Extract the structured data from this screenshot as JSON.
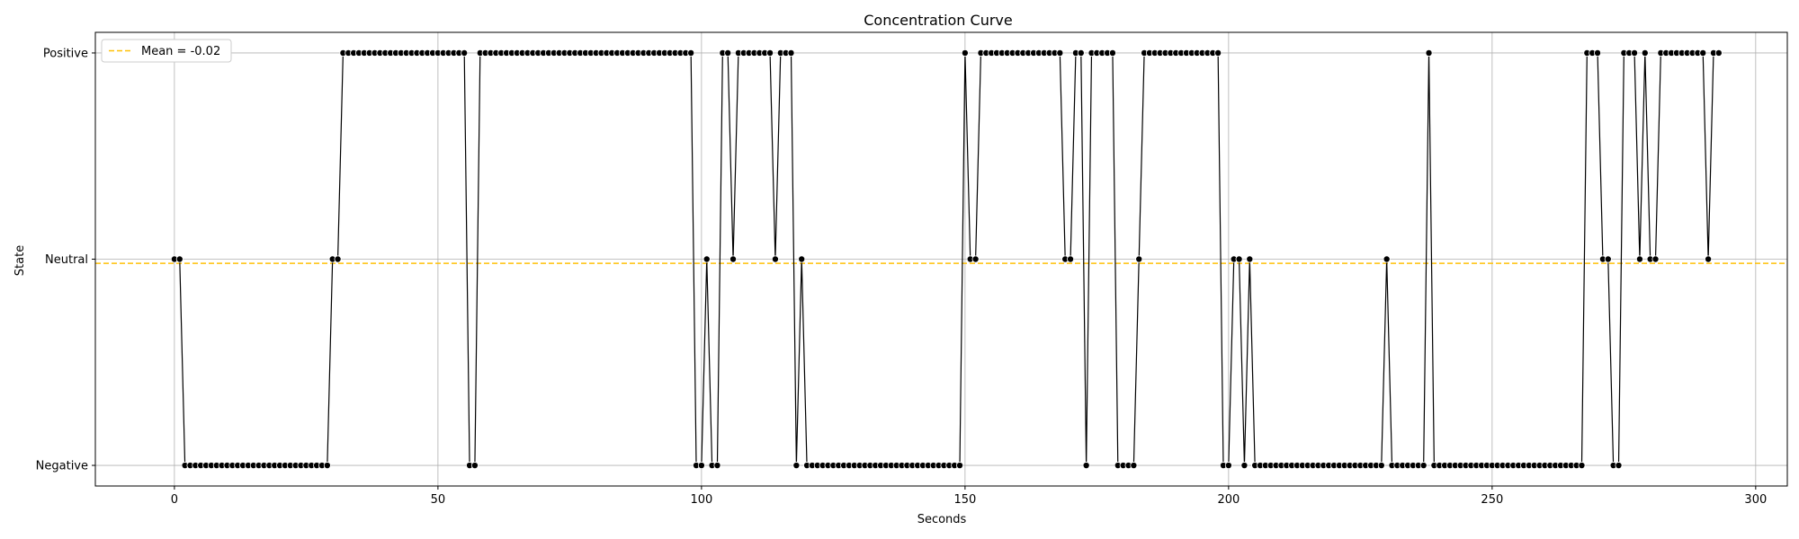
{
  "chart_data": {
    "type": "line",
    "title": "Concentration Curve",
    "xlabel": "Seconds",
    "ylabel": "State",
    "xlim": [
      -15,
      306
    ],
    "ylim": [
      -1.1,
      1.1
    ],
    "x_ticks": [
      0,
      50,
      100,
      150,
      200,
      250,
      300
    ],
    "y_ticks": [
      {
        "value": -1,
        "label": "Negative"
      },
      {
        "value": 0,
        "label": "Neutral"
      },
      {
        "value": 1,
        "label": "Positive"
      }
    ],
    "grid": true,
    "legend_position": "top-left",
    "mean_line": {
      "label": "Mean = -0.02",
      "value": -0.02,
      "color": "#ffc107"
    },
    "series": [
      {
        "color": "#000000",
        "x_start": 0,
        "x_step": 1,
        "values": [
          0,
          0,
          -1,
          -1,
          -1,
          -1,
          -1,
          -1,
          -1,
          -1,
          -1,
          -1,
          -1,
          -1,
          -1,
          -1,
          -1,
          -1,
          -1,
          -1,
          -1,
          -1,
          -1,
          -1,
          -1,
          -1,
          -1,
          -1,
          -1,
          -1,
          0,
          0,
          1,
          1,
          1,
          1,
          1,
          1,
          1,
          1,
          1,
          1,
          1,
          1,
          1,
          1,
          1,
          1,
          1,
          1,
          1,
          1,
          1,
          1,
          1,
          1,
          -1,
          -1,
          1,
          1,
          1,
          1,
          1,
          1,
          1,
          1,
          1,
          1,
          1,
          1,
          1,
          1,
          1,
          1,
          1,
          1,
          1,
          1,
          1,
          1,
          1,
          1,
          1,
          1,
          1,
          1,
          1,
          1,
          1,
          1,
          1,
          1,
          1,
          1,
          1,
          1,
          1,
          1,
          1,
          -1,
          -1,
          0,
          -1,
          -1,
          1,
          1,
          0,
          1,
          1,
          1,
          1,
          1,
          1,
          1,
          0,
          1,
          1,
          1,
          -1,
          0,
          -1,
          -1,
          -1,
          -1,
          -1,
          -1,
          -1,
          -1,
          -1,
          -1,
          -1,
          -1,
          -1,
          -1,
          -1,
          -1,
          -1,
          -1,
          -1,
          -1,
          -1,
          -1,
          -1,
          -1,
          -1,
          -1,
          -1,
          -1,
          -1,
          -1,
          1,
          0,
          0,
          1,
          1,
          1,
          1,
          1,
          1,
          1,
          1,
          1,
          1,
          1,
          1,
          1,
          1,
          1,
          1,
          0,
          0,
          1,
          1,
          -1,
          1,
          1,
          1,
          1,
          1,
          -1,
          -1,
          -1,
          -1,
          0,
          1,
          1,
          1,
          1,
          1,
          1,
          1,
          1,
          1,
          1,
          1,
          1,
          1,
          1,
          1,
          -1,
          -1,
          0,
          0,
          -1,
          0,
          -1,
          -1,
          -1,
          -1,
          -1,
          -1,
          -1,
          -1,
          -1,
          -1,
          -1,
          -1,
          -1,
          -1,
          -1,
          -1,
          -1,
          -1,
          -1,
          -1,
          -1,
          -1,
          -1,
          -1,
          -1,
          0,
          -1,
          -1,
          -1,
          -1,
          -1,
          -1,
          -1,
          1,
          -1,
          -1,
          -1,
          -1,
          -1,
          -1,
          -1,
          -1,
          -1,
          -1,
          -1,
          -1,
          -1,
          -1,
          -1,
          -1,
          -1,
          -1,
          -1,
          -1,
          -1,
          -1,
          -1,
          -1,
          -1,
          -1,
          -1,
          -1,
          -1,
          1,
          1,
          1,
          0,
          0,
          -1,
          -1,
          1,
          1,
          1,
          0,
          1,
          0,
          0,
          1,
          1,
          1,
          1,
          1,
          1,
          1,
          1,
          1,
          0,
          1,
          1
        ]
      }
    ]
  }
}
